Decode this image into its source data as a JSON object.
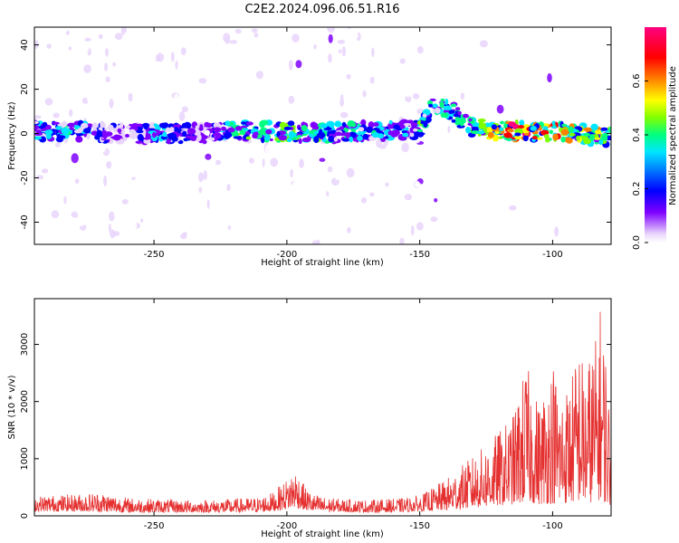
{
  "figure": {
    "title": "C2E2.2024.096.06.51.R16"
  },
  "chart_data": [
    {
      "type": "heatmap",
      "xlabel": "Height of straight line (km)",
      "ylabel": "Frequency (Hz)",
      "xlim": [
        -295,
        -78
      ],
      "ylim": [
        -50,
        48
      ],
      "x_ticks": [
        -250,
        -200,
        -150,
        -100
      ],
      "y_ticks": [
        -40,
        -20,
        0,
        20,
        40
      ],
      "x_tick_labels": [
        "-250",
        "-200",
        "-150",
        "-100"
      ],
      "y_tick_labels": [
        "-40",
        "-20",
        "0",
        "20",
        "40"
      ],
      "grid": false,
      "colorbar": {
        "label": "Normalized spectral amplitude",
        "range": [
          0,
          0.8
        ],
        "ticks": [
          0.0,
          0.2,
          0.4,
          0.6
        ],
        "tick_labels": [
          "0.0",
          "0.2",
          "0.4",
          "0.6"
        ],
        "colors": [
          "#ffffff",
          "#e9d5fb",
          "#7f00ff",
          "#0000ff",
          "#00e5ff",
          "#00ff80",
          "#80ff00",
          "#ffff00",
          "#ff8000",
          "#ff0000",
          "#ff0080"
        ]
      },
      "band": {
        "x": [
          -295,
          -280,
          -260,
          -250,
          -230,
          -220,
          -200,
          -190,
          -170,
          -152,
          -150,
          -145,
          -140,
          -130,
          -120,
          -110,
          -100,
          -90,
          -80,
          -78
        ],
        "center_hz": [
          1,
          1,
          0,
          0,
          0,
          1,
          1,
          0,
          1,
          2,
          2,
          13,
          12,
          3,
          1,
          1,
          1,
          0,
          -1,
          -2
        ],
        "intensity": [
          0.25,
          0.3,
          0.15,
          0.3,
          0.15,
          0.35,
          0.4,
          0.35,
          0.3,
          0.25,
          0.35,
          0.3,
          0.3,
          0.4,
          0.55,
          0.6,
          0.55,
          0.5,
          0.45,
          0.35
        ]
      }
    },
    {
      "type": "line",
      "xlabel": "Height of straight line (km)",
      "ylabel": "SNR (10 * v/v)",
      "xlim": [
        -295,
        -78
      ],
      "ylim": [
        0,
        3800
      ],
      "x_ticks": [
        -250,
        -200,
        -150,
        -100
      ],
      "y_ticks": [
        0,
        1000,
        2000,
        3000
      ],
      "x_tick_labels": [
        "-250",
        "-200",
        "-150",
        "-100"
      ],
      "y_tick_labels": [
        "0",
        "1000",
        "2000",
        "3000"
      ],
      "grid": false,
      "series": [
        {
          "color": "#e53030",
          "envelope_x": [
            -295,
            -280,
            -270,
            -260,
            -250,
            -240,
            -230,
            -220,
            -210,
            -205,
            -200,
            -197,
            -193,
            -190,
            -185,
            -180,
            -170,
            -160,
            -155,
            -150,
            -145,
            -140,
            -135,
            -130,
            -125,
            -120,
            -115,
            -112,
            -110,
            -107,
            -105,
            -100,
            -97,
            -95,
            -92,
            -90,
            -88,
            -85,
            -83,
            -82,
            -80,
            -78
          ],
          "envelope_y": [
            350,
            380,
            420,
            320,
            300,
            280,
            280,
            300,
            330,
            420,
            650,
            850,
            500,
            380,
            320,
            300,
            280,
            300,
            320,
            350,
            500,
            650,
            850,
            1050,
            1250,
            1500,
            1750,
            2300,
            2700,
            2200,
            2000,
            2800,
            2200,
            2300,
            2600,
            3100,
            2600,
            3000,
            3200,
            3750,
            3000,
            1500
          ],
          "floor_y": [
            80,
            80,
            70,
            60,
            60,
            60,
            60,
            60,
            70,
            80,
            120,
            150,
            100,
            80,
            70,
            70,
            60,
            60,
            70,
            80,
            90,
            100,
            120,
            140,
            160,
            180,
            200,
            220,
            240,
            220,
            200,
            220,
            200,
            220,
            240,
            260,
            220,
            240,
            260,
            300,
            220,
            150
          ]
        }
      ]
    }
  ]
}
